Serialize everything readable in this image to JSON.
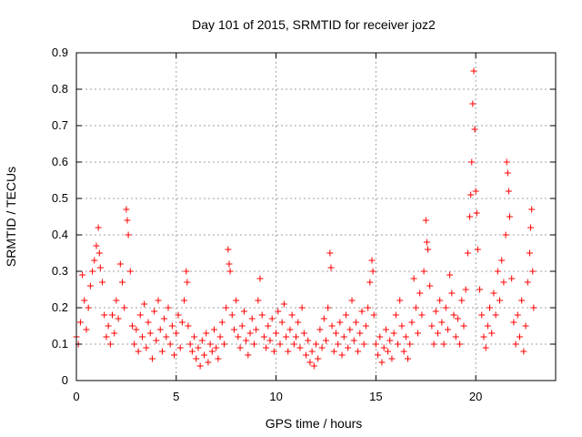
{
  "chart_data": {
    "type": "scatter",
    "title": "Day 101 of 2015, SRMTID for receiver joz2",
    "xlabel": "GPS time / hours",
    "ylabel": "SRMTID / TECUs",
    "xlim": [
      0,
      24
    ],
    "ylim": [
      0,
      0.9
    ],
    "grid": true,
    "marker": "+",
    "color": "#ff0000",
    "x_ticks": [
      0,
      5,
      10,
      15,
      20
    ],
    "x_tick_labels": [
      "0",
      "5",
      "10",
      "15",
      "20"
    ],
    "y_ticks": [
      0,
      0.1,
      0.2,
      0.3,
      0.4,
      0.5,
      0.6,
      0.7,
      0.8,
      0.9
    ],
    "y_tick_labels": [
      "0",
      "0.1",
      "0.2",
      "0.3",
      "0.4",
      "0.5",
      "0.6",
      "0.7",
      "0.8",
      "0.9"
    ],
    "series": [
      {
        "name": "SRMTID",
        "points": [
          [
            0.0,
            0.12
          ],
          [
            0.1,
            0.1
          ],
          [
            0.2,
            0.16
          ],
          [
            0.3,
            0.29
          ],
          [
            0.4,
            0.22
          ],
          [
            0.5,
            0.14
          ],
          [
            0.6,
            0.2
          ],
          [
            0.7,
            0.26
          ],
          [
            0.8,
            0.3
          ],
          [
            0.9,
            0.33
          ],
          [
            1.0,
            0.37
          ],
          [
            1.1,
            0.42
          ],
          [
            1.15,
            0.35
          ],
          [
            1.2,
            0.31
          ],
          [
            1.3,
            0.27
          ],
          [
            1.4,
            0.18
          ],
          [
            1.5,
            0.12
          ],
          [
            1.6,
            0.15
          ],
          [
            1.7,
            0.1
          ],
          [
            1.8,
            0.18
          ],
          [
            1.9,
            0.13
          ],
          [
            2.0,
            0.22
          ],
          [
            2.1,
            0.17
          ],
          [
            2.2,
            0.32
          ],
          [
            2.3,
            0.27
          ],
          [
            2.4,
            0.2
          ],
          [
            2.5,
            0.47
          ],
          [
            2.55,
            0.44
          ],
          [
            2.6,
            0.4
          ],
          [
            2.7,
            0.3
          ],
          [
            2.8,
            0.15
          ],
          [
            2.9,
            0.1
          ],
          [
            3.0,
            0.14
          ],
          [
            3.1,
            0.08
          ],
          [
            3.2,
            0.18
          ],
          [
            3.3,
            0.12
          ],
          [
            3.4,
            0.21
          ],
          [
            3.5,
            0.09
          ],
          [
            3.6,
            0.16
          ],
          [
            3.7,
            0.13
          ],
          [
            3.8,
            0.06
          ],
          [
            3.9,
            0.19
          ],
          [
            4.0,
            0.11
          ],
          [
            4.1,
            0.22
          ],
          [
            4.2,
            0.14
          ],
          [
            4.3,
            0.08
          ],
          [
            4.4,
            0.17
          ],
          [
            4.5,
            0.12
          ],
          [
            4.6,
            0.2
          ],
          [
            4.7,
            0.1
          ],
          [
            4.8,
            0.15
          ],
          [
            4.9,
            0.07
          ],
          [
            5.0,
            0.13
          ],
          [
            5.1,
            0.18
          ],
          [
            5.2,
            0.09
          ],
          [
            5.3,
            0.16
          ],
          [
            5.4,
            0.22
          ],
          [
            5.5,
            0.3
          ],
          [
            5.55,
            0.27
          ],
          [
            5.6,
            0.15
          ],
          [
            5.7,
            0.1
          ],
          [
            5.8,
            0.08
          ],
          [
            5.9,
            0.12
          ],
          [
            6.0,
            0.06
          ],
          [
            6.1,
            0.09
          ],
          [
            6.2,
            0.04
          ],
          [
            6.3,
            0.11
          ],
          [
            6.4,
            0.07
          ],
          [
            6.5,
            0.13
          ],
          [
            6.6,
            0.05
          ],
          [
            6.7,
            0.1
          ],
          [
            6.8,
            0.08
          ],
          [
            6.9,
            0.14
          ],
          [
            7.0,
            0.09
          ],
          [
            7.1,
            0.06
          ],
          [
            7.2,
            0.12
          ],
          [
            7.3,
            0.16
          ],
          [
            7.4,
            0.1
          ],
          [
            7.5,
            0.2
          ],
          [
            7.6,
            0.36
          ],
          [
            7.65,
            0.32
          ],
          [
            7.7,
            0.3
          ],
          [
            7.8,
            0.18
          ],
          [
            7.9,
            0.14
          ],
          [
            8.0,
            0.22
          ],
          [
            8.1,
            0.12
          ],
          [
            8.2,
            0.09
          ],
          [
            8.3,
            0.15
          ],
          [
            8.4,
            0.19
          ],
          [
            8.5,
            0.11
          ],
          [
            8.6,
            0.07
          ],
          [
            8.7,
            0.13
          ],
          [
            8.8,
            0.17
          ],
          [
            8.9,
            0.1
          ],
          [
            9.0,
            0.14
          ],
          [
            9.1,
            0.22
          ],
          [
            9.2,
            0.28
          ],
          [
            9.3,
            0.18
          ],
          [
            9.4,
            0.12
          ],
          [
            9.5,
            0.09
          ],
          [
            9.6,
            0.15
          ],
          [
            9.7,
            0.11
          ],
          [
            9.8,
            0.17
          ],
          [
            9.9,
            0.08
          ],
          [
            10.0,
            0.13
          ],
          [
            10.1,
            0.19
          ],
          [
            10.2,
            0.1
          ],
          [
            10.3,
            0.16
          ],
          [
            10.4,
            0.21
          ],
          [
            10.5,
            0.12
          ],
          [
            10.6,
            0.08
          ],
          [
            10.7,
            0.14
          ],
          [
            10.8,
            0.18
          ],
          [
            10.9,
            0.1
          ],
          [
            11.0,
            0.12
          ],
          [
            11.1,
            0.16
          ],
          [
            11.2,
            0.09
          ],
          [
            11.3,
            0.2
          ],
          [
            11.4,
            0.13
          ],
          [
            11.5,
            0.07
          ],
          [
            11.6,
            0.11
          ],
          [
            11.7,
            0.05
          ],
          [
            11.8,
            0.08
          ],
          [
            11.9,
            0.04
          ],
          [
            12.0,
            0.1
          ],
          [
            12.1,
            0.06
          ],
          [
            12.2,
            0.14
          ],
          [
            12.3,
            0.09
          ],
          [
            12.4,
            0.17
          ],
          [
            12.5,
            0.11
          ],
          [
            12.6,
            0.2
          ],
          [
            12.7,
            0.35
          ],
          [
            12.75,
            0.31
          ],
          [
            12.8,
            0.15
          ],
          [
            12.9,
            0.08
          ],
          [
            13.0,
            0.13
          ],
          [
            13.1,
            0.1
          ],
          [
            13.2,
            0.16
          ],
          [
            13.3,
            0.07
          ],
          [
            13.4,
            0.12
          ],
          [
            13.5,
            0.18
          ],
          [
            13.6,
            0.09
          ],
          [
            13.7,
            0.14
          ],
          [
            13.8,
            0.22
          ],
          [
            13.9,
            0.11
          ],
          [
            14.0,
            0.16
          ],
          [
            14.1,
            0.08
          ],
          [
            14.2,
            0.13
          ],
          [
            14.3,
            0.19
          ],
          [
            14.4,
            0.1
          ],
          [
            14.5,
            0.15
          ],
          [
            14.6,
            0.2
          ],
          [
            14.7,
            0.27
          ],
          [
            14.8,
            0.33
          ],
          [
            14.85,
            0.3
          ],
          [
            14.9,
            0.18
          ],
          [
            15.0,
            0.1
          ],
          [
            15.1,
            0.07
          ],
          [
            15.2,
            0.12
          ],
          [
            15.3,
            0.05
          ],
          [
            15.4,
            0.09
          ],
          [
            15.5,
            0.14
          ],
          [
            15.6,
            0.08
          ],
          [
            15.7,
            0.11
          ],
          [
            15.8,
            0.06
          ],
          [
            15.9,
            0.13
          ],
          [
            16.0,
            0.18
          ],
          [
            16.1,
            0.1
          ],
          [
            16.2,
            0.22
          ],
          [
            16.3,
            0.15
          ],
          [
            16.4,
            0.08
          ],
          [
            16.5,
            0.12
          ],
          [
            16.6,
            0.06
          ],
          [
            16.7,
            0.1
          ],
          [
            16.8,
            0.16
          ],
          [
            16.9,
            0.28
          ],
          [
            17.0,
            0.2
          ],
          [
            17.1,
            0.13
          ],
          [
            17.2,
            0.24
          ],
          [
            17.3,
            0.18
          ],
          [
            17.4,
            0.3
          ],
          [
            17.5,
            0.44
          ],
          [
            17.55,
            0.38
          ],
          [
            17.6,
            0.36
          ],
          [
            17.7,
            0.26
          ],
          [
            17.8,
            0.15
          ],
          [
            17.9,
            0.1
          ],
          [
            18.0,
            0.19
          ],
          [
            18.1,
            0.13
          ],
          [
            18.2,
            0.22
          ],
          [
            18.3,
            0.16
          ],
          [
            18.4,
            0.1
          ],
          [
            18.5,
            0.2
          ],
          [
            18.6,
            0.14
          ],
          [
            18.7,
            0.29
          ],
          [
            18.8,
            0.24
          ],
          [
            18.9,
            0.18
          ],
          [
            19.0,
            0.12
          ],
          [
            19.1,
            0.17
          ],
          [
            19.2,
            0.1
          ],
          [
            19.3,
            0.22
          ],
          [
            19.4,
            0.15
          ],
          [
            19.5,
            0.25
          ],
          [
            19.6,
            0.35
          ],
          [
            19.7,
            0.45
          ],
          [
            19.75,
            0.51
          ],
          [
            19.8,
            0.6
          ],
          [
            19.85,
            0.76
          ],
          [
            19.9,
            0.85
          ],
          [
            19.95,
            0.69
          ],
          [
            20.0,
            0.52
          ],
          [
            20.05,
            0.46
          ],
          [
            20.1,
            0.36
          ],
          [
            20.2,
            0.25
          ],
          [
            20.3,
            0.18
          ],
          [
            20.4,
            0.12
          ],
          [
            20.5,
            0.09
          ],
          [
            20.6,
            0.15
          ],
          [
            20.7,
            0.2
          ],
          [
            20.8,
            0.13
          ],
          [
            20.9,
            0.24
          ],
          [
            21.0,
            0.18
          ],
          [
            21.1,
            0.3
          ],
          [
            21.2,
            0.22
          ],
          [
            21.3,
            0.33
          ],
          [
            21.4,
            0.27
          ],
          [
            21.5,
            0.4
          ],
          [
            21.55,
            0.6
          ],
          [
            21.6,
            0.57
          ],
          [
            21.65,
            0.52
          ],
          [
            21.7,
            0.45
          ],
          [
            21.8,
            0.28
          ],
          [
            21.9,
            0.16
          ],
          [
            22.0,
            0.1
          ],
          [
            22.1,
            0.18
          ],
          [
            22.2,
            0.12
          ],
          [
            22.3,
            0.22
          ],
          [
            22.4,
            0.08
          ],
          [
            22.5,
            0.15
          ],
          [
            22.6,
            0.27
          ],
          [
            22.7,
            0.35
          ],
          [
            22.75,
            0.42
          ],
          [
            22.8,
            0.47
          ],
          [
            22.85,
            0.3
          ],
          [
            22.9,
            0.2
          ]
        ]
      }
    ]
  }
}
